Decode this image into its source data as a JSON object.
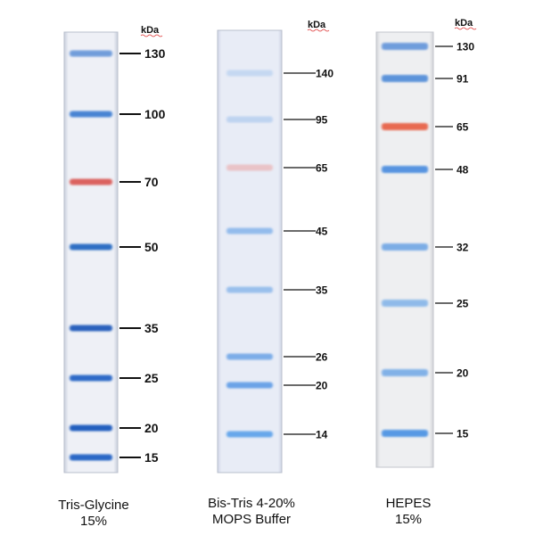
{
  "unit_label": "kDa",
  "gels": [
    {
      "caption_line1": "Tris-Glycine",
      "caption_line2": "15%",
      "bands": [
        {
          "mw": "130",
          "color": "#5b8fd6",
          "intensity": 0.85
        },
        {
          "mw": "100",
          "color": "#3f7fd2",
          "intensity": 0.95
        },
        {
          "mw": "70",
          "color": "#d9534f",
          "intensity": 0.9
        },
        {
          "mw": "50",
          "color": "#2f6fc4",
          "intensity": 1.0
        },
        {
          "mw": "35",
          "color": "#2a62bd",
          "intensity": 1.0
        },
        {
          "mw": "25",
          "color": "#2d6bc8",
          "intensity": 1.0
        },
        {
          "mw": "20",
          "color": "#245fbf",
          "intensity": 1.0
        },
        {
          "mw": "15",
          "color": "#2b68c6",
          "intensity": 1.0
        }
      ]
    },
    {
      "caption_line1": "Bis-Tris 4-20%",
      "caption_line2": "MOPS Buffer",
      "bands": [
        {
          "mw": "140",
          "color": "#a9c8ee",
          "intensity": 0.55
        },
        {
          "mw": "95",
          "color": "#a3c3ec",
          "intensity": 0.6
        },
        {
          "mw": "65",
          "color": "#eba8a8",
          "intensity": 0.6
        },
        {
          "mw": "45",
          "color": "#7fb0ea",
          "intensity": 0.8
        },
        {
          "mw": "35",
          "color": "#86b4ea",
          "intensity": 0.8
        },
        {
          "mw": "26",
          "color": "#6aa3e6",
          "intensity": 0.85
        },
        {
          "mw": "20",
          "color": "#5f9ce6",
          "intensity": 0.9
        },
        {
          "mw": "14",
          "color": "#5aa0ea",
          "intensity": 0.9
        }
      ]
    },
    {
      "caption_line1": "HEPES",
      "caption_line2": "15%",
      "bands": [
        {
          "mw": "130",
          "color": "#5a8fd9",
          "intensity": 0.85
        },
        {
          "mw": "91",
          "color": "#4e8ad8",
          "intensity": 0.9
        },
        {
          "mw": "65",
          "color": "#e8644a",
          "intensity": 0.95
        },
        {
          "mw": "48",
          "color": "#4f90e0",
          "intensity": 0.95
        },
        {
          "mw": "32",
          "color": "#69a2e4",
          "intensity": 0.85
        },
        {
          "mw": "25",
          "color": "#78aee8",
          "intensity": 0.8
        },
        {
          "mw": "20",
          "color": "#6fa7e6",
          "intensity": 0.85
        },
        {
          "mw": "15",
          "color": "#4f95e4",
          "intensity": 0.95
        }
      ]
    }
  ]
}
